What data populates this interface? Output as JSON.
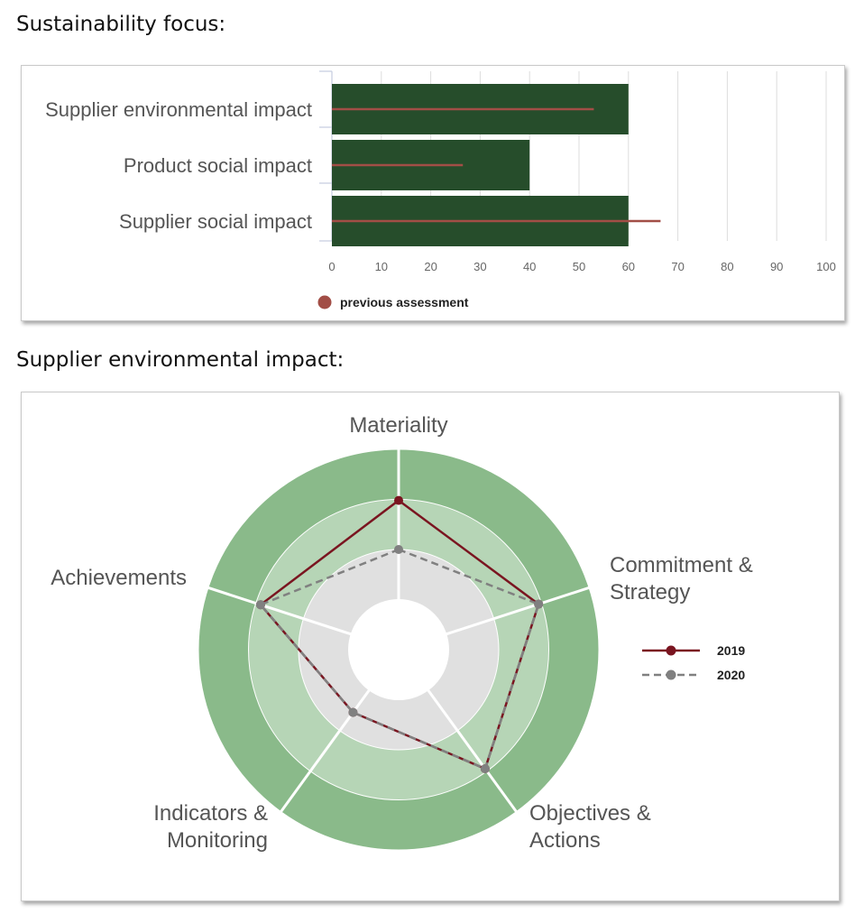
{
  "titles": {
    "focus": "Sustainability focus:",
    "radar": "Supplier environmental impact:"
  },
  "chart_data": [
    {
      "type": "bar",
      "orientation": "horizontal",
      "categories": [
        "Supplier environmental impact",
        "Product social impact",
        "Supplier social impact"
      ],
      "values": [
        60,
        40,
        60
      ],
      "previous_assessment": [
        53,
        26.5,
        66.5
      ],
      "xlim": [
        0,
        100
      ],
      "xticks": [
        0,
        10,
        20,
        30,
        40,
        50,
        60,
        70,
        80,
        90,
        100
      ],
      "legend": {
        "label": "previous assessment",
        "placement": "bottom-left"
      },
      "grid": true,
      "colors": {
        "bar": "#264d2b",
        "marker": "#a24e46"
      }
    },
    {
      "type": "radar",
      "axes": [
        "Materiality",
        "Commitment & Strategy",
        "Objectives & Actions",
        "Indicators & Monitoring",
        "Achievements"
      ],
      "axis_label_lines": [
        [
          "Materiality"
        ],
        [
          "Commitment &",
          "Strategy"
        ],
        [
          "Objectives &",
          "Actions"
        ],
        [
          "Indicators &",
          "Monitoring"
        ],
        [
          "Achievements"
        ]
      ],
      "rlim": [
        0,
        4
      ],
      "rings": [
        1,
        2,
        3,
        4
      ],
      "series": [
        {
          "name": "2019",
          "values": [
            2.98,
            2.94,
            2.94,
            1.55,
            2.9
          ],
          "color": "#7a1520",
          "style": "solid"
        },
        {
          "name": "2020",
          "values": [
            2.0,
            2.94,
            2.94,
            1.55,
            2.9
          ],
          "color": "#808080",
          "style": "dashed"
        }
      ],
      "legend": {
        "placement": "right"
      },
      "colors": {
        "ring_outer": "#8aba8a",
        "ring_middle": "#b6d5b6",
        "ring_inner": "#e0e0e0",
        "center": "#ffffff"
      }
    }
  ]
}
